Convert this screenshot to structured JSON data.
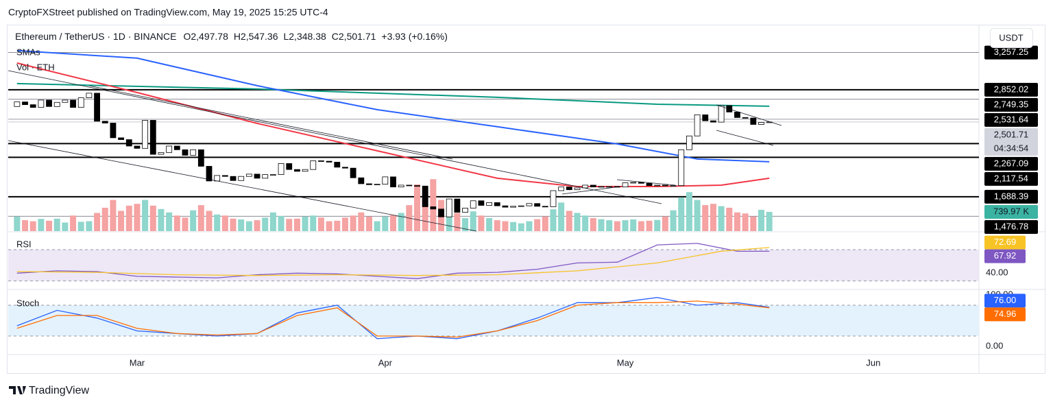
{
  "header": {
    "publisher": "CryptoFXStreet published on TradingView.com, May 19, 2025 15:25 UTC-4",
    "footer": "TradingView"
  },
  "chart_data": [
    {
      "type": "candlestick",
      "title": "Ethereum / TetherUS · 1D · BINANCE",
      "ohlc_labels": [
        "O2,497.78",
        "H2,547.36",
        "L2,348.38",
        "C2,501.71",
        "+3.93 (+0.16%)"
      ],
      "currency": "USDT",
      "legend": [
        "SMAs",
        "Vol · ETH"
      ],
      "x": [
        0,
        1,
        2,
        3,
        4,
        5,
        6,
        7,
        8,
        9,
        10,
        11,
        12,
        13,
        14,
        15,
        16,
        17,
        18,
        19,
        20,
        21,
        22,
        23,
        24,
        25,
        26,
        27,
        28,
        29,
        30,
        31,
        32,
        33,
        34,
        35,
        36,
        37,
        38,
        39,
        40,
        41,
        42,
        43,
        44,
        45,
        46,
        47,
        48,
        49,
        50,
        51,
        52,
        53,
        54,
        55,
        56,
        57,
        58,
        59,
        60,
        61,
        62,
        63,
        64,
        65,
        66,
        67,
        68,
        69,
        70,
        71,
        72,
        73,
        74,
        75,
        76,
        77,
        78,
        79,
        80,
        81,
        82,
        83,
        84,
        85,
        86,
        87,
        88,
        89,
        90,
        91,
        92,
        93,
        94
      ],
      "open": [
        2670,
        2720,
        2690,
        2660,
        2740,
        2670,
        2715,
        2740,
        2660,
        2765,
        2815,
        2510,
        2490,
        2330,
        2310,
        2240,
        2215,
        2520,
        2150,
        2170,
        2240,
        2200,
        2140,
        2200,
        2020,
        1860,
        1920,
        1910,
        1865,
        1910,
        1935,
        1890,
        1930,
        1930,
        2050,
        1985,
        1965,
        1985,
        2080,
        2075,
        2065,
        2010,
        2000,
        1895,
        1830,
        1820,
        1825,
        1905,
        1795,
        1815,
        1810,
        1805,
        1580,
        1555,
        1470,
        1665,
        1520,
        1565,
        1645,
        1595,
        1625,
        1590,
        1575,
        1585,
        1590,
        1615,
        1585,
        1580,
        1755,
        1795,
        1765,
        1785,
        1815,
        1795,
        1800,
        1800,
        1795,
        1840,
        1845,
        1835,
        1810,
        1815,
        1810,
        1810,
        2200,
        2350,
        2580,
        2515,
        2500,
        2680,
        2610,
        2550,
        2545,
        2475,
        2497.78
      ],
      "close": [
        2720,
        2690,
        2660,
        2740,
        2670,
        2715,
        2740,
        2660,
        2765,
        2815,
        2510,
        2490,
        2330,
        2310,
        2240,
        2215,
        2520,
        2150,
        2170,
        2240,
        2200,
        2140,
        2200,
        2020,
        1860,
        1920,
        1910,
        1865,
        1910,
        1935,
        1890,
        1930,
        1930,
        2050,
        1985,
        1965,
        1985,
        2080,
        2075,
        2065,
        2010,
        2000,
        1895,
        1830,
        1820,
        1825,
        1905,
        1795,
        1815,
        1810,
        1805,
        1580,
        1555,
        1470,
        1665,
        1520,
        1565,
        1645,
        1595,
        1625,
        1590,
        1575,
        1585,
        1590,
        1615,
        1585,
        1580,
        1755,
        1795,
        1765,
        1785,
        1815,
        1795,
        1800,
        1800,
        1795,
        1840,
        1845,
        1835,
        1810,
        1815,
        1810,
        1810,
        2200,
        2350,
        2580,
        2515,
        2500,
        2680,
        2610,
        2550,
        2545,
        2475,
        2497.78,
        2501.71
      ],
      "up_color": "#ffffff",
      "down_color": "#000000",
      "xlim": [
        -1.1,
        120.2
      ],
      "xticks": [
        {
          "value": 15,
          "label": "Mar"
        },
        {
          "value": 46,
          "label": "Apr"
        },
        {
          "value": 76,
          "label": "May"
        },
        {
          "value": 107,
          "label": "Jun"
        }
      ],
      "ylim": [
        1315,
        3530
      ],
      "levels": [
        {
          "value": 3257.25,
          "label": "3,257.25",
          "weight": "thin"
        },
        {
          "value": 2852.02,
          "label": "2,852.02",
          "weight": "thick"
        },
        {
          "value": 2749.35,
          "label": "2,749.35",
          "weight": "thin"
        },
        {
          "value": 2531.64,
          "label": "2,531.64",
          "weight": "thin"
        },
        {
          "value": 2267.09,
          "label": "2,267.09",
          "weight": "thick"
        },
        {
          "value": 2117.54,
          "label": "2,117.54",
          "weight": "thick"
        },
        {
          "value": 1688.39,
          "label": "1,688.39",
          "weight": "thick"
        },
        {
          "value": 1476.78,
          "label": "1,476.78",
          "weight": "thin"
        }
      ],
      "last_price": {
        "value": 2501.71,
        "label": "2,501.71",
        "countdown": "04:34:54"
      },
      "sma": [
        {
          "color": "#089981",
          "x": [
            0,
            30,
            60,
            80,
            94
          ],
          "values": [
            2919,
            2860,
            2770,
            2695,
            2673
          ]
        },
        {
          "color": "#2962ff",
          "x": [
            0,
            15,
            30,
            45,
            60,
            75,
            85,
            94
          ],
          "values": [
            3278,
            3196,
            2897,
            2636,
            2450,
            2263,
            2099,
            2069
          ]
        },
        {
          "color": "#f23645",
          "x": [
            0,
            15,
            30,
            45,
            60,
            70,
            80,
            88,
            94
          ],
          "values": [
            3143,
            2822,
            2487,
            2188,
            1890,
            1800,
            1800,
            1815,
            1890
          ]
        }
      ],
      "volume": {
        "ylim": [
          0,
          7840
        ],
        "up_color": "#8fd6cc",
        "down_color": "#f5a3a3",
        "label_color": "#3bb3a3",
        "last_label": "739.97 K",
        "values": [
          560,
          420,
          380,
          470,
          400,
          480,
          330,
          600,
          360,
          380,
          700,
          900,
          1200,
          780,
          980,
          1050,
          1200,
          980,
          850,
          720,
          600,
          520,
          800,
          1000,
          780,
          640,
          600,
          480,
          450,
          380,
          420,
          520,
          720,
          580,
          470,
          480,
          560,
          600,
          520,
          380,
          400,
          520,
          600,
          720,
          560,
          380,
          560,
          620,
          700,
          1000,
          1800,
          1400,
          2000,
          1200,
          900,
          700,
          500,
          760,
          600,
          500,
          420,
          380,
          350,
          300,
          380,
          460,
          560,
          840,
          1100,
          780,
          700,
          600,
          500,
          460,
          420,
          380,
          420,
          450,
          380,
          400,
          430,
          560,
          800,
          1300,
          1500,
          1200,
          1000,
          1050,
          960,
          900,
          720,
          680,
          560,
          820,
          739.97
        ]
      }
    },
    {
      "type": "line",
      "title": "RSI",
      "ylim": [
        21,
        91
      ],
      "band": [
        30,
        70
      ],
      "band_color": "#ede7f6",
      "yticks": [
        {
          "value": 40,
          "label": "40.00"
        }
      ],
      "series": [
        {
          "color": "#7e57c2",
          "x": [
            0,
            5,
            10,
            15,
            20,
            25,
            30,
            35,
            40,
            45,
            50,
            55,
            60,
            65,
            70,
            75,
            80,
            85,
            90,
            94
          ],
          "values": [
            40,
            43,
            42,
            36,
            35,
            34,
            38,
            40,
            39,
            36,
            33,
            40,
            41,
            45,
            53,
            54,
            76,
            78,
            68,
            67.92
          ],
          "last_label": "67.92"
        },
        {
          "color": "#f7c325",
          "x": [
            0,
            10,
            20,
            30,
            40,
            50,
            60,
            70,
            80,
            88,
            94
          ],
          "values": [
            42,
            41,
            38,
            37,
            38,
            37,
            38,
            43,
            53,
            68,
            72.69
          ],
          "last_label": "72.69"
        }
      ]
    },
    {
      "type": "line",
      "title": "Stoch",
      "ylim": [
        -13.3,
        106.7
      ],
      "band": [
        20,
        80
      ],
      "band_color": "#e3f2fd",
      "yticks": [
        {
          "value": 100,
          "label": "100.00"
        },
        {
          "value": 0,
          "label": "0.00"
        }
      ],
      "series": [
        {
          "color": "#2962ff",
          "x": [
            0,
            5,
            10,
            15,
            20,
            25,
            30,
            35,
            40,
            45,
            50,
            55,
            60,
            65,
            70,
            75,
            80,
            85,
            90,
            94
          ],
          "values": [
            40,
            70,
            55,
            30,
            25,
            20,
            25,
            65,
            80,
            15,
            20,
            15,
            30,
            55,
            85,
            85,
            95,
            80,
            85,
            76
          ],
          "last_label": "76.00"
        },
        {
          "color": "#ff6d00",
          "x": [
            0,
            5,
            10,
            15,
            20,
            25,
            30,
            35,
            40,
            45,
            50,
            55,
            60,
            65,
            70,
            75,
            80,
            85,
            90,
            94
          ],
          "values": [
            35,
            60,
            60,
            35,
            25,
            22,
            25,
            60,
            75,
            20,
            20,
            18,
            30,
            50,
            80,
            85,
            85,
            88,
            82,
            74.96
          ],
          "last_label": "74.96"
        }
      ]
    }
  ]
}
